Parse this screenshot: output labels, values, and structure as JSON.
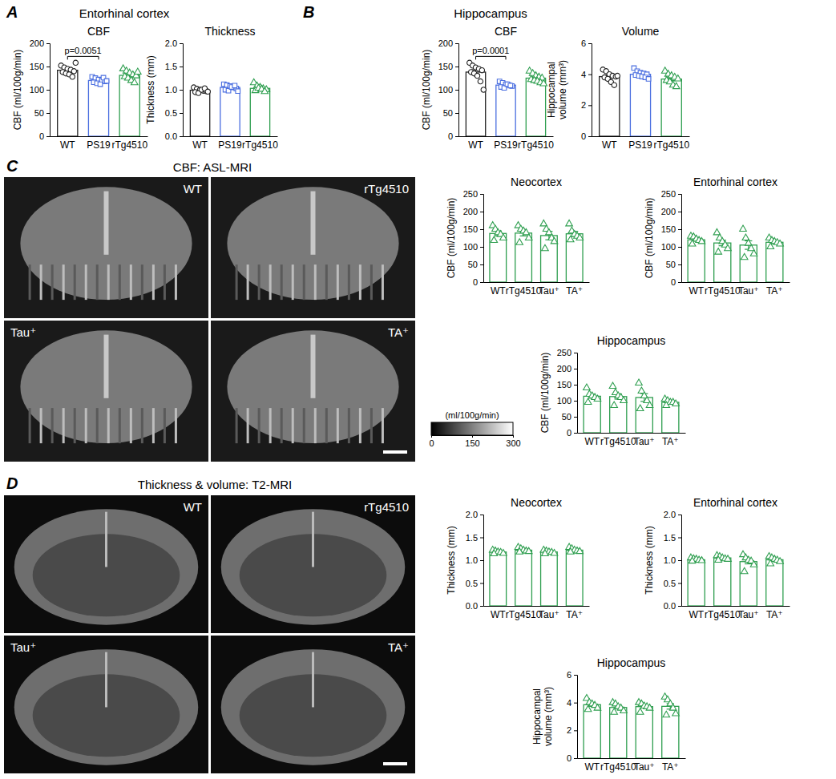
{
  "panels": [
    {
      "label": "A",
      "title": "Entorhinal cortex"
    },
    {
      "label": "B",
      "title": "Hippocampus"
    },
    {
      "label": "C",
      "title": "CBF: ASL-MRI",
      "images": [
        "WT",
        "rTg4510",
        "Tau⁺",
        "TA⁺"
      ],
      "colorbar": {
        "label": "(ml/100g/min)",
        "range": [
          0,
          300
        ],
        "ticks": [
          0,
          150,
          300
        ]
      }
    },
    {
      "label": "D",
      "title": "Thickness & volume: T2-MRI",
      "images": [
        "WT",
        "rTg4510",
        "Tau⁺",
        "TA⁺"
      ]
    }
  ],
  "chart_data": [
    {
      "type": "bar",
      "title": "CBF",
      "ylabel": "CBF (ml/100g/min)",
      "categories": [
        "WT",
        "PS19",
        "rTg4510"
      ],
      "values": [
        142,
        120,
        131
      ],
      "errors": [
        3.5,
        2,
        3.5
      ],
      "points": [
        [
          152,
          148,
          145,
          143,
          140,
          138,
          135,
          133,
          128,
          158
        ],
        [
          128,
          125,
          122,
          120,
          118,
          116,
          114,
          112,
          126,
          119
        ],
        [
          145,
          140,
          136,
          132,
          130,
          128,
          125,
          120,
          115,
          138
        ]
      ],
      "colors": [
        "#222222",
        "#4a6ee0",
        "#2e9e4f"
      ],
      "marker": [
        "circle",
        "square",
        "triangle"
      ],
      "ylim": [
        0,
        200
      ],
      "yticks": [
        0,
        50,
        100,
        150,
        200
      ],
      "annotations": [
        {
          "text": "p=0.0051",
          "between": [
            "WT",
            "PS19"
          ]
        }
      ]
    },
    {
      "type": "bar",
      "title": "Thickness",
      "ylabel": "Thickness (mm)",
      "categories": [
        "WT",
        "PS19",
        "rTg4510"
      ],
      "values": [
        0.99,
        1.05,
        1.03
      ],
      "errors": [
        0.012,
        0.016,
        0.02
      ],
      "points": [
        [
          1.05,
          1.02,
          1.0,
          0.98,
          0.97,
          0.95,
          0.93,
          1.0,
          1.03,
          0.96
        ],
        [
          1.12,
          1.1,
          1.08,
          1.05,
          1.03,
          1.0,
          0.98,
          1.06,
          1.09,
          0.97
        ],
        [
          1.15,
          1.08,
          1.05,
          1.02,
          1.0,
          0.98,
          1.03,
          1.01,
          0.96
        ]
      ],
      "colors": [
        "#222222",
        "#4a6ee0",
        "#2e9e4f"
      ],
      "marker": [
        "circle",
        "square",
        "triangle"
      ],
      "ylim": [
        0,
        2
      ],
      "yticks": [
        {
          "value": 0,
          "label": "0.0"
        },
        {
          "value": 0.5,
          "label": "0.5"
        },
        {
          "value": 1,
          "label": "1.0"
        },
        {
          "value": 1.5,
          "label": "1.5"
        },
        {
          "value": 2,
          "label": "2.0"
        }
      ]
    },
    {
      "type": "bar",
      "title": "CBF",
      "ylabel": "CBF (ml/100g/min)",
      "categories": [
        "WT",
        "PS19",
        "rTg4510"
      ],
      "values": [
        138,
        110,
        125
      ],
      "errors": [
        5,
        2,
        3
      ],
      "points": [
        [
          158,
          152,
          148,
          145,
          142,
          138,
          135,
          130,
          118,
          100
        ],
        [
          118,
          115,
          112,
          110,
          108,
          106,
          104,
          112,
          109
        ],
        [
          140,
          135,
          130,
          127,
          125,
          122,
          120,
          118,
          115,
          113
        ]
      ],
      "colors": [
        "#222222",
        "#4a6ee0",
        "#2e9e4f"
      ],
      "marker": [
        "circle",
        "square",
        "triangle"
      ],
      "ylim": [
        0,
        200
      ],
      "yticks": [
        0,
        50,
        100,
        150,
        200
      ],
      "annotations": [
        {
          "text": "p=0.0001",
          "between": [
            "WT",
            "PS19"
          ]
        }
      ]
    },
    {
      "type": "bar",
      "title": "Volume",
      "ylabel": [
        "Hippocampal",
        "volume (mm³)"
      ],
      "categories": [
        "WT",
        "PS19",
        "rTg4510"
      ],
      "values": [
        3.85,
        4.0,
        3.69
      ],
      "errors": [
        0.1,
        0.07,
        0.1
      ],
      "points": [
        [
          4.3,
          4.2,
          4.0,
          3.9,
          3.85,
          3.8,
          3.7,
          3.5,
          3.3,
          3.9
        ],
        [
          4.4,
          4.2,
          4.1,
          4.05,
          4.0,
          3.95,
          3.9,
          3.85,
          3.8,
          3.7
        ],
        [
          4.2,
          4.0,
          3.9,
          3.8,
          3.7,
          3.6,
          3.5,
          3.3,
          3.2
        ]
      ],
      "colors": [
        "#222222",
        "#4a6ee0",
        "#2e9e4f"
      ],
      "marker": [
        "circle",
        "square",
        "triangle"
      ],
      "ylim": [
        0,
        6
      ],
      "yticks": [
        0,
        2,
        4,
        6
      ]
    },
    {
      "type": "bar",
      "title": "Neocortex",
      "ylabel": "CBF (ml/100g/min)",
      "categories": [
        "WT",
        "rTg4510",
        "Tau⁺",
        "TA⁺"
      ],
      "values": [
        138,
        139,
        132,
        137
      ],
      "errors": [
        7,
        8,
        12,
        7
      ],
      "points": [
        [
          160,
          150,
          140,
          135,
          125,
          118
        ],
        [
          160,
          150,
          145,
          140,
          125,
          112
        ],
        [
          165,
          150,
          140,
          125,
          115,
          95
        ],
        [
          165,
          145,
          135,
          130,
          125,
          120
        ]
      ],
      "color": "#2e9e4f",
      "marker": "triangle",
      "ylim": [
        0,
        250
      ],
      "yticks": [
        0,
        50,
        100,
        150,
        200,
        250
      ]
    },
    {
      "type": "bar",
      "title": "Entorhinal cortex",
      "ylabel": "CBF (ml/100g/min)",
      "categories": [
        "WT",
        "rTg4510",
        "Tau⁺",
        "TA⁺"
      ],
      "values": [
        120,
        111,
        105,
        113
      ],
      "errors": [
        4,
        8,
        12,
        4
      ],
      "points": [
        [
          130,
          128,
          122,
          118,
          115,
          108
        ],
        [
          140,
          125,
          115,
          105,
          95,
          85
        ],
        [
          150,
          125,
          110,
          95,
          80,
          70
        ],
        [
          125,
          118,
          115,
          112,
          108,
          100
        ]
      ],
      "color": "#2e9e4f",
      "marker": "triangle",
      "ylim": [
        0,
        250
      ],
      "yticks": [
        0,
        50,
        100,
        150,
        200,
        250
      ]
    },
    {
      "type": "bar",
      "title": "Hippocampus",
      "ylabel": "CBF (ml/100g/min)",
      "categories": [
        "WT",
        "rTg4510",
        "Tau⁺",
        "TA⁺"
      ],
      "values": [
        114,
        113,
        110,
        95
      ],
      "errors": [
        6,
        8,
        12,
        3
      ],
      "points": [
        [
          140,
          120,
          115,
          110,
          105,
          95
        ],
        [
          145,
          125,
          115,
          110,
          100,
          85
        ],
        [
          155,
          130,
          115,
          100,
          85,
          75
        ],
        [
          105,
          100,
          95,
          95,
          90,
          85
        ]
      ],
      "color": "#2e9e4f",
      "marker": "triangle",
      "ylim": [
        0,
        250
      ],
      "yticks": [
        0,
        50,
        100,
        150,
        200,
        250
      ]
    },
    {
      "type": "bar",
      "title": "Neocortex",
      "ylabel": "Thickness (mm)",
      "categories": [
        "WT",
        "rTg4510",
        "Tau⁺",
        "TA⁺"
      ],
      "values": [
        1.18,
        1.22,
        1.18,
        1.22
      ],
      "errors": [
        0.013,
        0.016,
        0.013,
        0.016
      ],
      "points": [
        [
          1.22,
          1.2,
          1.18,
          1.17,
          1.15,
          1.14
        ],
        [
          1.28,
          1.25,
          1.22,
          1.2,
          1.19,
          1.18
        ],
        [
          1.22,
          1.2,
          1.18,
          1.17,
          1.15,
          1.14
        ],
        [
          1.28,
          1.25,
          1.22,
          1.2,
          1.19,
          1.18
        ]
      ],
      "color": "#2e9e4f",
      "marker": "triangle",
      "ylim": [
        0,
        2
      ],
      "yticks": [
        {
          "value": 0,
          "label": "0.0"
        },
        {
          "value": 0.5,
          "label": "0.5"
        },
        {
          "value": 1,
          "label": "1.0"
        },
        {
          "value": 1.5,
          "label": "1.5"
        },
        {
          "value": 2,
          "label": "2.0"
        }
      ]
    },
    {
      "type": "bar",
      "title": "Entorhinal cortex",
      "ylabel": "Thickness (mm)",
      "categories": [
        "WT",
        "rTg4510",
        "Tau⁺",
        "TA⁺"
      ],
      "values": [
        1.01,
        1.05,
        0.97,
        1.01
      ],
      "errors": [
        0.011,
        0.015,
        0.05,
        0.023
      ],
      "points": [
        [
          1.05,
          1.03,
          1.02,
          1.0,
          0.99,
          0.98
        ],
        [
          1.1,
          1.08,
          1.05,
          1.03,
          1.02,
          1.0
        ],
        [
          1.12,
          1.05,
          1.0,
          0.98,
          0.9,
          0.75
        ],
        [
          1.08,
          1.05,
          1.02,
          1.0,
          0.97,
          0.92
        ]
      ],
      "color": "#2e9e4f",
      "marker": "triangle",
      "ylim": [
        0,
        2
      ],
      "yticks": [
        {
          "value": 0,
          "label": "0.0"
        },
        {
          "value": 0.5,
          "label": "0.5"
        },
        {
          "value": 1,
          "label": "1.0"
        },
        {
          "value": 1.5,
          "label": "1.5"
        },
        {
          "value": 2,
          "label": "2.0"
        }
      ]
    },
    {
      "type": "bar",
      "title": "Hippocampus",
      "ylabel": [
        "Hippocampal",
        "volume (mm³)"
      ],
      "categories": [
        "WT",
        "rTg4510",
        "Tau⁺",
        "TA⁺"
      ],
      "values": [
        3.85,
        3.65,
        3.71,
        3.73
      ],
      "errors": [
        0.12,
        0.11,
        0.1,
        0.2
      ],
      "points": [
        [
          4.3,
          4.0,
          3.9,
          3.8,
          3.6,
          3.5
        ],
        [
          4.0,
          3.9,
          3.7,
          3.6,
          3.4,
          3.3
        ],
        [
          4.0,
          3.9,
          3.75,
          3.7,
          3.6,
          3.3
        ],
        [
          4.4,
          4.2,
          3.9,
          3.6,
          3.2,
          3.1
        ]
      ],
      "color": "#2e9e4f",
      "marker": "triangle",
      "ylim": [
        0,
        6
      ],
      "yticks": [
        0,
        2,
        4,
        6
      ]
    }
  ]
}
